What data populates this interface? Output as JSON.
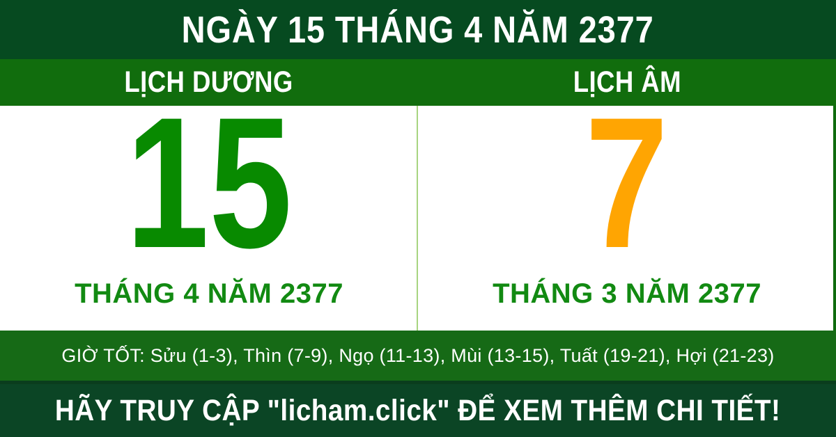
{
  "header": {
    "title": "NGÀY 15 THÁNG 4 NĂM 2377"
  },
  "calendar_bar": {
    "solar_label": "LỊCH DƯƠNG",
    "lunar_label": "LỊCH ÂM"
  },
  "solar": {
    "day": "15",
    "month_year": "THÁNG 4 NĂM 2377"
  },
  "lunar": {
    "day": "7",
    "month_year": "THÁNG 3 NĂM 2377"
  },
  "good_hours": {
    "text": "GIỜ TỐT: Sửu (1-3), Thìn (7-9), Ngọ (11-13), Mùi (13-15), Tuất (19-21), Hợi (21-23)"
  },
  "footer": {
    "text": "HÃY TRUY CẬP \"licham.click\" ĐỂ XEM THÊM CHI TIẾT!"
  },
  "colors": {
    "header_bg": "#064A20",
    "calendar_bar_bg": "#116D0D",
    "good_hours_bg": "#166A16",
    "footer_bg": "#0B4525",
    "solar_day": "#088A00",
    "lunar_day": "#FFA502",
    "month_text": "#128A12",
    "divider": "#A8D480",
    "text_on_green": "#FFFFFF"
  }
}
